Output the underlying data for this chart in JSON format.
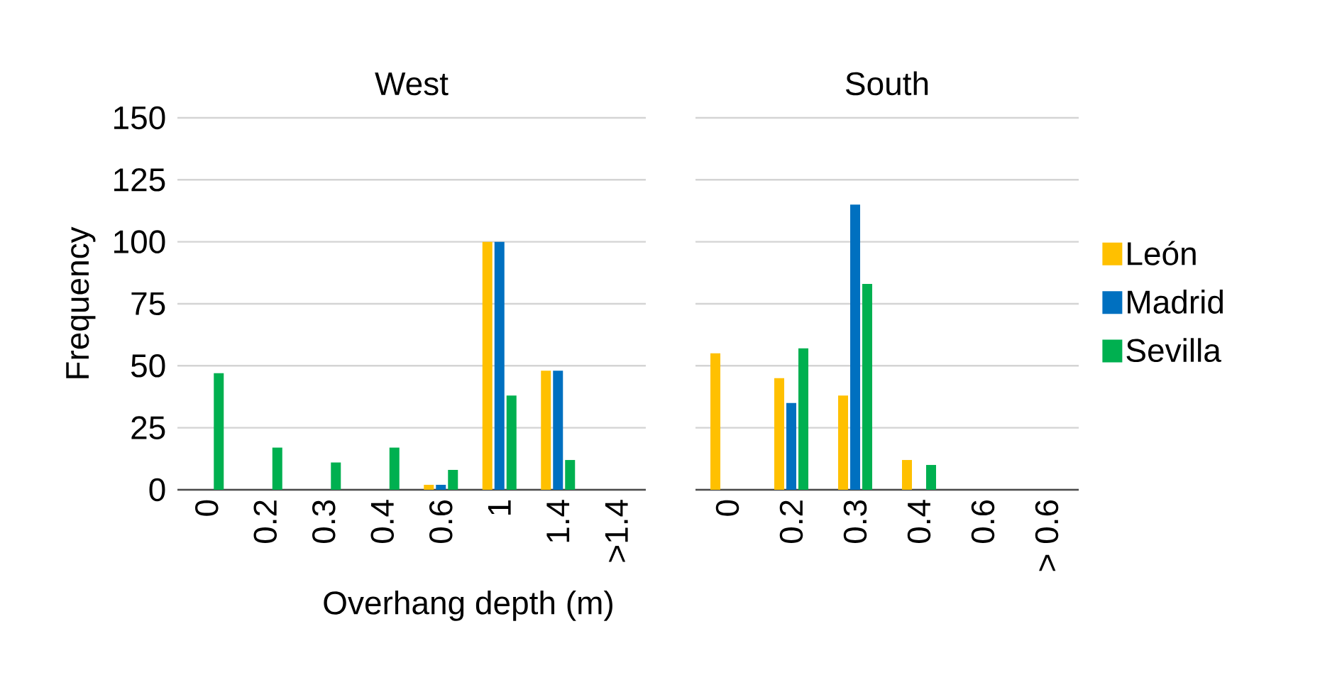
{
  "chart_data": [
    {
      "type": "bar",
      "title": "West",
      "ylabel": "Frequency",
      "xlabel": "Overhang depth (m)",
      "categories": [
        "0",
        "0.2",
        "0.3",
        "0.4",
        "0.6",
        "1",
        "1.4",
        ">1.4"
      ],
      "series": [
        {
          "color": "#ffc000",
          "values": [
            null,
            null,
            null,
            null,
            2,
            100,
            48,
            null
          ]
        },
        {
          "color": "#0070c0",
          "values": [
            null,
            null,
            null,
            null,
            2,
            100,
            48,
            null
          ]
        },
        {
          "color": "#00b050",
          "values": [
            47,
            17,
            11,
            17,
            8,
            38,
            12,
            null
          ]
        }
      ],
      "ylim": [
        0,
        150
      ],
      "yticks": [
        0,
        25,
        50,
        75,
        100,
        125,
        150
      ],
      "grid": "y"
    },
    {
      "type": "bar",
      "title": "South",
      "categories": [
        "0",
        "0.2",
        "0.3",
        "0.4",
        "0.6",
        "> 0.6"
      ],
      "series": [
        {
          "name": "León",
          "color": "#ffc000",
          "values": [
            55,
            45,
            38,
            12,
            null,
            null
          ]
        },
        {
          "name": "Madrid",
          "color": "#0070c0",
          "values": [
            null,
            35,
            115,
            null,
            null,
            null
          ]
        },
        {
          "name": "Sevilla",
          "color": "#00b050",
          "values": [
            null,
            57,
            83,
            10,
            null,
            null
          ]
        }
      ],
      "ylim": [
        0,
        150
      ],
      "yticks": [
        0,
        25,
        50,
        75,
        100,
        125,
        150
      ],
      "grid": "y",
      "tick_labels": "x",
      "legend": "right"
    }
  ]
}
